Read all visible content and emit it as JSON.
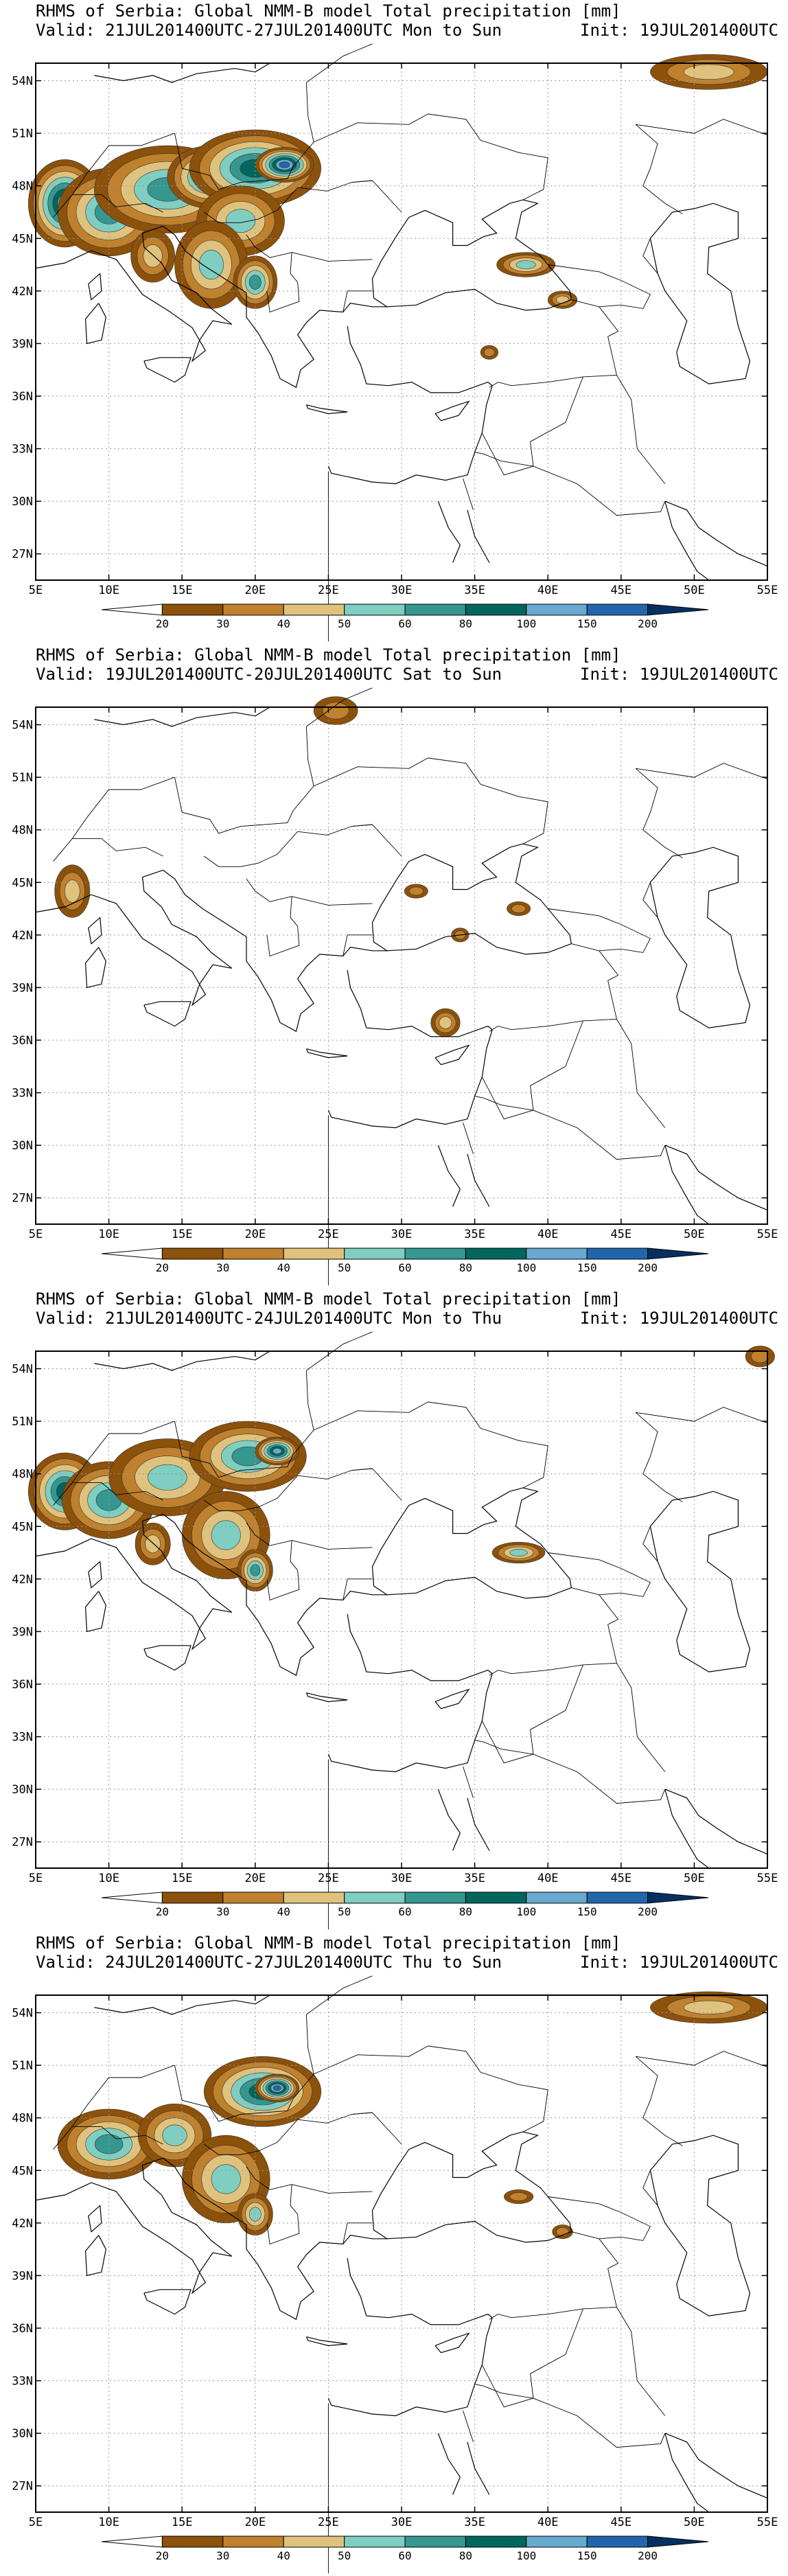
{
  "panels": [
    {
      "title": "RHMS of Serbia: Global NMM-B model Total precipitation [mm]",
      "valid": "Valid: 21JUL201400UTC-27JUL201400UTC Mon to Sun",
      "init": "Init: 19JUL201400UTC"
    },
    {
      "title": "RHMS of Serbia: Global NMM-B model Total precipitation [mm]",
      "valid": "Valid: 19JUL201400UTC-20JUL201400UTC Sat to Sun",
      "init": "Init: 19JUL201400UTC"
    },
    {
      "title": "RHMS of Serbia: Global NMM-B model Total precipitation [mm]",
      "valid": "Valid: 21JUL201400UTC-24JUL201400UTC Mon to Thu",
      "init": "Init: 19JUL201400UTC"
    },
    {
      "title": "RHMS of Serbia: Global NMM-B model Total precipitation [mm]",
      "valid": "Valid: 24JUL201400UTC-27JUL201400UTC Thu to Sun",
      "init": "Init: 19JUL201400UTC"
    }
  ],
  "map": {
    "lon_ticks": [
      "5E",
      "10E",
      "15E",
      "20E",
      "25E",
      "30E",
      "35E",
      "40E",
      "45E",
      "50E",
      "55E"
    ],
    "lat_ticks": [
      "54N",
      "51N",
      "48N",
      "45N",
      "42N",
      "39N",
      "36N",
      "33N",
      "30N",
      "27N"
    ],
    "lon_range": [
      5,
      55
    ],
    "lat_range": [
      25.5,
      55
    ]
  },
  "colorbar": {
    "labels": [
      "20",
      "30",
      "40",
      "50",
      "60",
      "80",
      "100",
      "150",
      "200"
    ],
    "colors": [
      "#8c510a",
      "#bf812d",
      "#dfc27d",
      "#80cdc1",
      "#35978f",
      "#01665e",
      "#67a9cf",
      "#2166ac",
      "#053061"
    ],
    "lower_color": "#ffffff"
  },
  "precip_areas": [
    [
      {
        "lon": 7,
        "lat": 47,
        "rx": 2.5,
        "ry": 2.5,
        "level": 6
      },
      {
        "lon": 10,
        "lat": 46.5,
        "rx": 3.5,
        "ry": 2.5,
        "level": 4
      },
      {
        "lon": 14,
        "lat": 47.8,
        "rx": 5,
        "ry": 2.5,
        "level": 4
      },
      {
        "lon": 17,
        "lat": 48.5,
        "rx": 3,
        "ry": 1.8,
        "level": 5
      },
      {
        "lon": 20,
        "lat": 49,
        "rx": 4.5,
        "ry": 2.2,
        "level": 5
      },
      {
        "lon": 22,
        "lat": 49.2,
        "rx": 2,
        "ry": 1,
        "level": 7
      },
      {
        "lon": 19,
        "lat": 46,
        "rx": 3,
        "ry": 2,
        "level": 3
      },
      {
        "lon": 17,
        "lat": 43.5,
        "rx": 2.5,
        "ry": 2.5,
        "level": 3
      },
      {
        "lon": 20,
        "lat": 42.5,
        "rx": 1.5,
        "ry": 1.5,
        "level": 4
      },
      {
        "lon": 13,
        "lat": 44,
        "rx": 1.5,
        "ry": 1.5,
        "level": 2
      },
      {
        "lon": 38.5,
        "lat": 43.5,
        "rx": 2,
        "ry": 0.7,
        "level": 3
      },
      {
        "lon": 41,
        "lat": 41.5,
        "rx": 1,
        "ry": 0.5,
        "level": 2
      },
      {
        "lon": 51,
        "lat": 54.5,
        "rx": 4,
        "ry": 1,
        "level": 2
      },
      {
        "lon": 36,
        "lat": 38.5,
        "rx": 0.6,
        "ry": 0.4,
        "level": 1
      }
    ],
    [
      {
        "lon": 7.5,
        "lat": 44.5,
        "rx": 1.2,
        "ry": 1.5,
        "level": 2
      },
      {
        "lon": 25.5,
        "lat": 54.8,
        "rx": 1.5,
        "ry": 0.8,
        "level": 1
      },
      {
        "lon": 31,
        "lat": 44.5,
        "rx": 0.8,
        "ry": 0.4,
        "level": 1
      },
      {
        "lon": 38,
        "lat": 43.5,
        "rx": 0.8,
        "ry": 0.4,
        "level": 1
      },
      {
        "lon": 33,
        "lat": 37,
        "rx": 1,
        "ry": 0.8,
        "level": 2
      },
      {
        "lon": 34,
        "lat": 42,
        "rx": 0.6,
        "ry": 0.4,
        "level": 1
      }
    ],
    [
      {
        "lon": 7,
        "lat": 47,
        "rx": 2.5,
        "ry": 2.2,
        "level": 5
      },
      {
        "lon": 10,
        "lat": 46.5,
        "rx": 3.2,
        "ry": 2.2,
        "level": 4
      },
      {
        "lon": 14,
        "lat": 47.8,
        "rx": 4,
        "ry": 2.2,
        "level": 3
      },
      {
        "lon": 19.5,
        "lat": 49,
        "rx": 4,
        "ry": 2,
        "level": 4
      },
      {
        "lon": 21.5,
        "lat": 49.3,
        "rx": 1.5,
        "ry": 0.8,
        "level": 6
      },
      {
        "lon": 18,
        "lat": 44.5,
        "rx": 3,
        "ry": 2.5,
        "level": 3
      },
      {
        "lon": 20,
        "lat": 42.5,
        "rx": 1.2,
        "ry": 1.2,
        "level": 4
      },
      {
        "lon": 13,
        "lat": 44,
        "rx": 1.2,
        "ry": 1.2,
        "level": 2
      },
      {
        "lon": 38,
        "lat": 43.5,
        "rx": 1.8,
        "ry": 0.6,
        "level": 3
      },
      {
        "lon": 54.5,
        "lat": 54.7,
        "rx": 1,
        "ry": 0.6,
        "level": 1
      }
    ],
    [
      {
        "lon": 10,
        "lat": 46.5,
        "rx": 3.5,
        "ry": 2,
        "level": 4
      },
      {
        "lon": 14.5,
        "lat": 47,
        "rx": 2.5,
        "ry": 1.8,
        "level": 3
      },
      {
        "lon": 20.5,
        "lat": 49.5,
        "rx": 4,
        "ry": 2,
        "level": 5
      },
      {
        "lon": 21.5,
        "lat": 49.7,
        "rx": 1.5,
        "ry": 0.8,
        "level": 7
      },
      {
        "lon": 18,
        "lat": 44.5,
        "rx": 3,
        "ry": 2.5,
        "level": 3
      },
      {
        "lon": 20,
        "lat": 42.5,
        "rx": 1.2,
        "ry": 1.2,
        "level": 3
      },
      {
        "lon": 51,
        "lat": 54.3,
        "rx": 4,
        "ry": 0.9,
        "level": 2
      },
      {
        "lon": 38,
        "lat": 43.5,
        "rx": 1,
        "ry": 0.4,
        "level": 1
      },
      {
        "lon": 41,
        "lat": 41.5,
        "rx": 0.7,
        "ry": 0.4,
        "level": 1
      }
    ]
  ]
}
